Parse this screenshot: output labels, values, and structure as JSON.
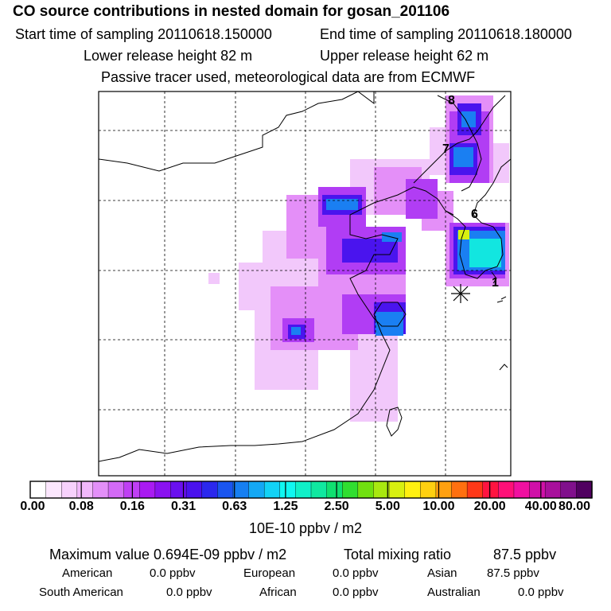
{
  "header": {
    "title": "CO  source contributions in nested domain for gosan_201106",
    "start_label": "Start time of sampling 20110618.150000",
    "end_label": "End time of sampling 20110618.180000",
    "lower_label": "Lower release height   82 m",
    "upper_label": "Upper release height   62 m",
    "note": "Passive tracer used, meteorological data are from ECMWF"
  },
  "map": {
    "station_labels": [
      "8",
      "7",
      "6",
      "1"
    ],
    "receptor_marker": "asterisk"
  },
  "colorbar": {
    "tick_labels": [
      "0.00",
      "0.08",
      "0.16",
      "0.31",
      "0.63",
      "1.25",
      "2.50",
      "5.00",
      "10.00",
      "20.00",
      "40.00",
      "80.00"
    ],
    "colors": [
      "#ffffff",
      "#fbe6fd",
      "#f7d1fc",
      "#f1b8fb",
      "#e38ff8",
      "#d36af6",
      "#bf3ff4",
      "#a91bf2",
      "#8a12f0",
      "#6a10ef",
      "#4a12ee",
      "#2b28ee",
      "#1a55f0",
      "#167ff2",
      "#14a8f4",
      "#12d2f6",
      "#10f7f1",
      "#10f0c8",
      "#10e8a0",
      "#10e070",
      "#30de30",
      "#70e010",
      "#a8e810",
      "#d8f010",
      "#fff010",
      "#ffd010",
      "#ffa010",
      "#ff7010",
      "#ff3818",
      "#ff1440",
      "#ff1078",
      "#f010a0",
      "#d010a8",
      "#a8109c",
      "#80108c",
      "#500060"
    ],
    "units": "10E-10 ppbv / m2"
  },
  "summary": {
    "max_label": "Maximum value  0.694E-09 ppbv / m2",
    "total_label": "Total mixing ratio",
    "total_value": "87.5 ppbv",
    "sources": [
      {
        "name": "American",
        "value": "0.0 ppbv"
      },
      {
        "name": "European",
        "value": "0.0 ppbv"
      },
      {
        "name": "Asian",
        "value": "87.5 ppbv"
      },
      {
        "name": "South American",
        "value": "0.0 ppbv"
      },
      {
        "name": "African",
        "value": "0.0 ppbv"
      },
      {
        "name": "Australian",
        "value": "0.0 ppbv"
      }
    ]
  }
}
